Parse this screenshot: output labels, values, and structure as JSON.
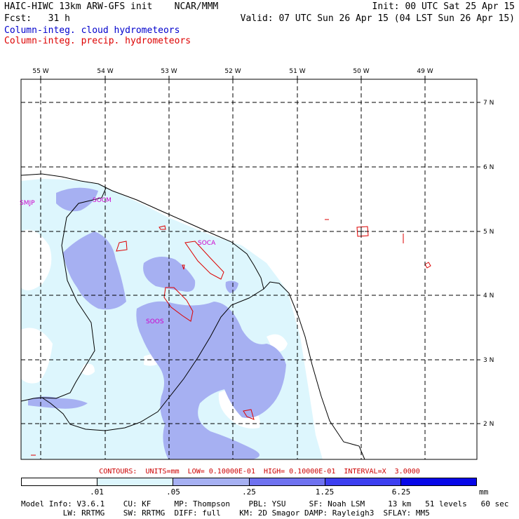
{
  "header": {
    "line1_left": "HAIC-HIWC 13km ARW-GFS init    NCAR/MMM",
    "line2_left": "Fcst:   31 h",
    "line1_right": "Init: 00 UTC Sat 25 Apr 15",
    "line2_right": "Valid: 07 UTC Sun 26 Apr 15 (04 LST Sun 26 Apr 15)",
    "legend_cloud": "Column-integ. cloud hydrometeors",
    "legend_precip": "Column-integ. precip. hydrometeors",
    "legend_cloud_color": "#0000cc",
    "legend_precip_color": "#dd0000"
  },
  "map": {
    "lon_labels": [
      "55 W",
      "54 W",
      "53 W",
      "52 W",
      "51 W",
      "50 W",
      "49 W"
    ],
    "lat_labels": [
      "7 N",
      "6 N",
      "5 N",
      "4 N",
      "3 N",
      "2 N"
    ],
    "stations": [
      "SMJP",
      "SOCM",
      "SOCA",
      "SOOS"
    ],
    "station_color": "#cc00cc",
    "land_color": "#ffffff",
    "coast_color": "#000000"
  },
  "contour_note": "CONTOURS:  UNITS=mm  LOW= 0.10000E-01  HIGH= 0.10000E-01  INTERVAL=X  3.0000",
  "colorbar": {
    "colors": [
      "#ffffff",
      "#ddf6fd",
      "#a6b0f2",
      "#6f72f0",
      "#3d3ff0",
      "#0707e8"
    ],
    "labels": [
      ".01",
      ".05",
      ".25",
      "1.25",
      "6.25"
    ],
    "units": "mm"
  },
  "footer": {
    "line1": "Model Info: V3.6.1    CU: KF     MP: Thompson    PBL: YSU     SF: Noah LSM     13 km   51 levels   60 sec",
    "line2": "         LW: RRTMG    SW: RRTMG  DIFF: full    KM: 2D Smagor DAMP: Rayleigh3  SFLAY: MM5"
  }
}
